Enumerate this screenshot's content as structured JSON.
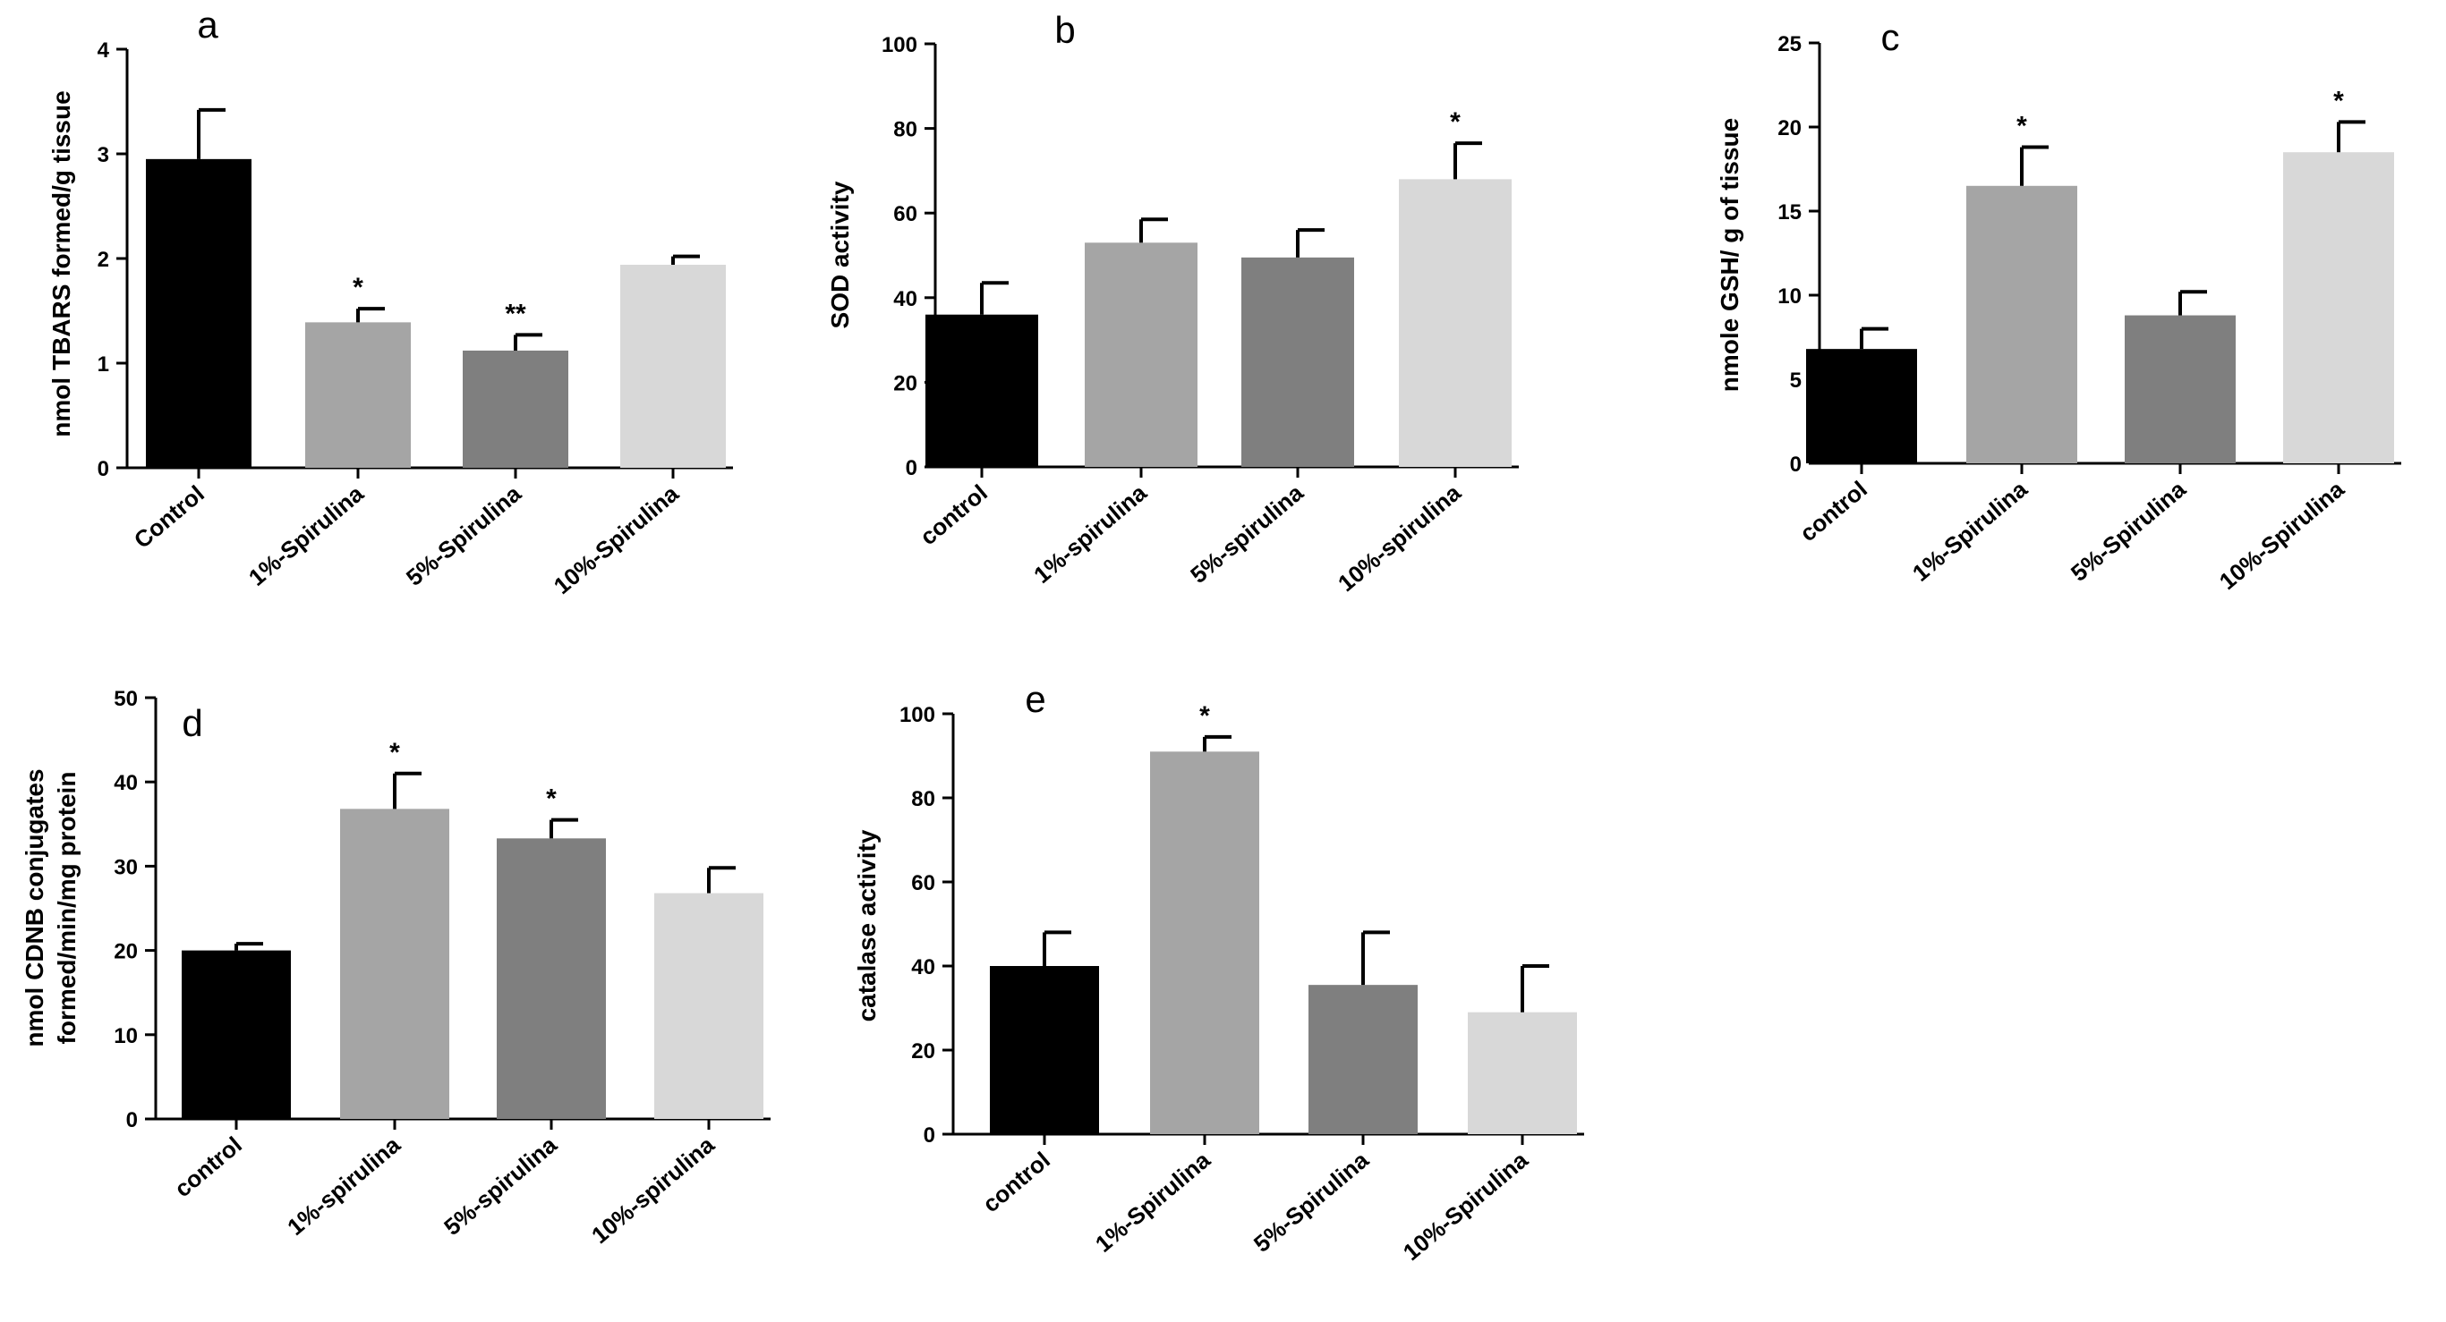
{
  "chart_data": [
    {
      "type": "bar",
      "panel_label": "a",
      "ylabel": "nmol TBARS formed/g tissue",
      "ylim": [
        0,
        4
      ],
      "yticks": [
        0,
        1,
        2,
        3,
        4
      ],
      "categories": [
        "Control",
        "1%-Spirulina",
        "5%-Spirulina",
        "10%-Spirulina"
      ],
      "values": [
        2.95,
        1.39,
        1.12,
        1.94
      ],
      "errors": [
        0.47,
        0.13,
        0.15,
        0.08
      ],
      "significance": [
        "",
        "*",
        "**",
        ""
      ],
      "colors": [
        "#000000",
        "#a5a5a5",
        "#7f7f7f",
        "#d8d8d8"
      ]
    },
    {
      "type": "bar",
      "panel_label": "b",
      "ylabel": "SOD activity",
      "ylim": [
        0,
        100
      ],
      "yticks": [
        0,
        20,
        40,
        60,
        80,
        100
      ],
      "categories": [
        "control",
        "1%-spirulina",
        "5%-spirulina",
        "10%-spirulina"
      ],
      "values": [
        36,
        53,
        49.5,
        68
      ],
      "errors": [
        7.5,
        5.5,
        6.5,
        8.5
      ],
      "significance": [
        "",
        "",
        "",
        "*"
      ],
      "colors": [
        "#000000",
        "#a5a5a5",
        "#7f7f7f",
        "#d8d8d8"
      ]
    },
    {
      "type": "bar",
      "panel_label": "c",
      "ylabel": "nmole GSH/ g of tissue",
      "ylim": [
        0,
        25
      ],
      "yticks": [
        0,
        5,
        10,
        15,
        20,
        25
      ],
      "categories": [
        "control",
        "1%-Spirulina",
        "5%-Spirulina",
        "10%-Spirulina"
      ],
      "values": [
        6.8,
        16.5,
        8.8,
        18.5
      ],
      "errors": [
        1.2,
        2.3,
        1.4,
        1.8
      ],
      "significance": [
        "",
        "*",
        "",
        "*"
      ],
      "colors": [
        "#000000",
        "#a5a5a5",
        "#7f7f7f",
        "#d8d8d8"
      ]
    },
    {
      "type": "bar",
      "panel_label": "d",
      "ylabel_lines": [
        "nmol CDNB conjugates",
        "formed/min/mg protein"
      ],
      "ylim": [
        0,
        50
      ],
      "yticks": [
        0,
        10,
        20,
        30,
        40,
        50
      ],
      "categories": [
        "control",
        "1%-spirulina",
        "5%-spirulina",
        "10%-spirulina"
      ],
      "values": [
        20,
        36.8,
        33.3,
        26.8
      ],
      "errors": [
        0.8,
        4.2,
        2.2,
        3.0
      ],
      "significance": [
        "",
        "*",
        "*",
        ""
      ],
      "colors": [
        "#000000",
        "#a5a5a5",
        "#7f7f7f",
        "#d8d8d8"
      ]
    },
    {
      "type": "bar",
      "panel_label": "e",
      "ylabel": "catalase activity",
      "ylim": [
        0,
        100
      ],
      "yticks": [
        0,
        20,
        40,
        60,
        80,
        100
      ],
      "categories": [
        "control",
        "1%-Spirulina",
        "5%-Spirulina",
        "10%-Spirulina"
      ],
      "values": [
        40,
        91,
        35.5,
        29
      ],
      "errors": [
        8,
        3.5,
        12.5,
        11
      ],
      "significance": [
        "",
        "*",
        "",
        ""
      ],
      "colors": [
        "#000000",
        "#a5a5a5",
        "#7f7f7f",
        "#d8d8d8"
      ]
    }
  ]
}
